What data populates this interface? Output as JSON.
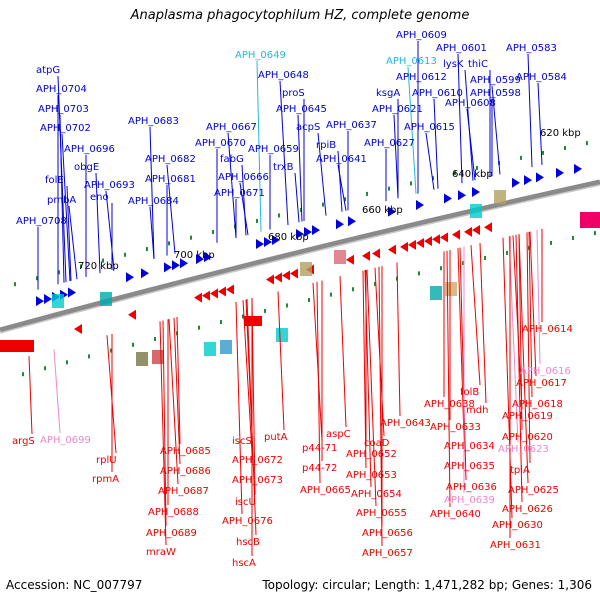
{
  "title": "Anaplasma phagocytophilum HZ, complete genome",
  "footer": {
    "accession_label": "Accession:",
    "accession": "NC_007797",
    "topology_label": "Topology:",
    "topology": "circular",
    "length_label": "Length:",
    "length": "1,471,282 bp",
    "genes_label": "Genes:",
    "genes": "1,306"
  },
  "colors": {
    "forward_gene": "#0000dd",
    "reverse_gene": "#ee0000",
    "highlight_forward": "#22b8e0",
    "highlight_reverse": "#ee88cc",
    "backbone": "#8a8a8a",
    "tick_marker": "#228833",
    "kbp_text": "#000000"
  },
  "kbp_ticks": [
    "620 kbp",
    "640 kbp",
    "660 kbp",
    "680 kbp",
    "700 kbp",
    "720 kbp"
  ],
  "forward_labels": [
    "APH_0609",
    "APH_0601",
    "lysK",
    "thiC",
    "APH_0583",
    "APH_0613",
    "APH_0612",
    "APH_0610",
    "APH_0599",
    "APH_0598",
    "APH_0584",
    "APH_0608",
    "ksgA",
    "APH_0621",
    "APH_0615",
    "APH_0627",
    "APH_0649",
    "APH_0648",
    "proS",
    "APH_0645",
    "acpS",
    "APH_0637",
    "rpiB",
    "APH_0641",
    "APH_0659",
    "trxB",
    "APH_0667",
    "APH_0670",
    "fabG",
    "APH_0666",
    "APH_0671",
    "APH_0683",
    "APH_0682",
    "APH_0681",
    "APH_0684",
    "atpG",
    "APH_0704",
    "APH_0703",
    "APH_0702",
    "APH_0696",
    "obgE",
    "APH_0693",
    "eno",
    "folE",
    "pmbA",
    "APH_0708"
  ],
  "reverse_labels": [
    "APH_0614",
    "APH_0616",
    "APH_0617",
    "folB",
    "APH_0638",
    "APH_0618",
    "mdh",
    "APH_0619",
    "APH_0633",
    "APH_0620",
    "APH_0634",
    "APH_0623",
    "APH_0635",
    "tpiA",
    "APH_0636",
    "APH_0625",
    "APH_0639",
    "APH_0640",
    "APH_0626",
    "APH_0630",
    "APH_0631",
    "APH_0643",
    "aspC",
    "coaD",
    "APH_0652",
    "APH_0653",
    "APH_0654",
    "APH_0655",
    "APH_0656",
    "APH_0657",
    "putA",
    "p44-71",
    "p44-72",
    "APH_0665",
    "iscS",
    "APH_0672",
    "APH_0673",
    "iscU",
    "APH_0676",
    "hscB",
    "hscA",
    "APH_0685",
    "APH_0686",
    "APH_0687",
    "APH_0688",
    "APH_0689",
    "mraW",
    "rplU",
    "rpmA",
    "argS",
    "APH_0699"
  ]
}
